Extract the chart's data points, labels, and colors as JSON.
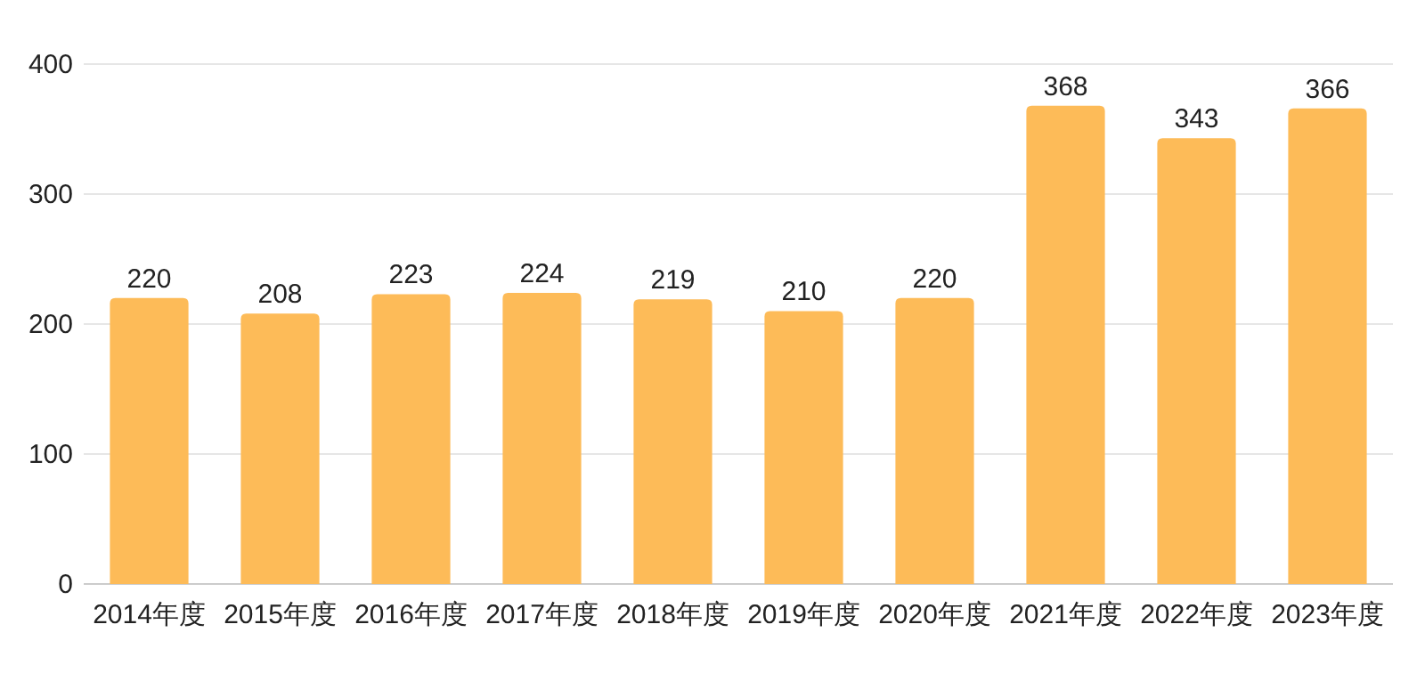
{
  "chart_data": {
    "type": "bar",
    "categories": [
      "2014年度",
      "2015年度",
      "2016年度",
      "2017年度",
      "2018年度",
      "2019年度",
      "2020年度",
      "2021年度",
      "2022年度",
      "2023年度"
    ],
    "values": [
      220,
      208,
      223,
      224,
      219,
      210,
      220,
      368,
      343,
      366
    ],
    "color": "#fdbb58",
    "ylim": [
      0,
      400
    ],
    "yticks": [
      0,
      100,
      200,
      300,
      400
    ],
    "grid": "y",
    "data_labels": true
  }
}
